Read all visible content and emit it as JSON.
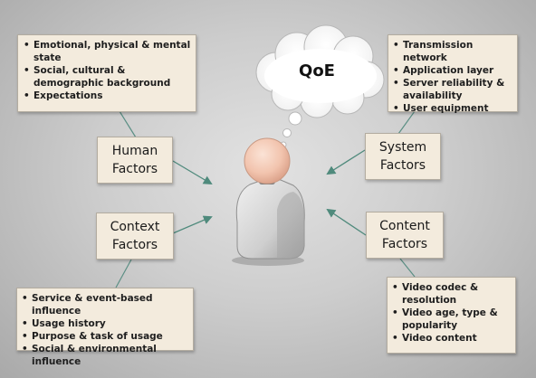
{
  "cloud_label": "QoE",
  "human": {
    "title_line1": "Human",
    "title_line2": "Factors",
    "items": [
      "Emotional, physical & mental state",
      "Social, cultural & demographic background",
      "Expectations"
    ]
  },
  "context": {
    "title_line1": "Context",
    "title_line2": "Factors",
    "items": [
      "Service & event-based influence",
      "Usage history",
      "Purpose & task of usage",
      "Social & environmental influence"
    ]
  },
  "system": {
    "title_line1": "System",
    "title_line2": "Factors",
    "items": [
      "Transmission network",
      "Application layer",
      "Server reliability & availability",
      "User equipment"
    ]
  },
  "content": {
    "title_line1": "Content",
    "title_line2": "Factors",
    "items": [
      "Video codec & resolution",
      "Video age, type & popularity",
      "Video content"
    ]
  },
  "colors": {
    "box_fill": "#f3ebdd",
    "arrow": "#4f8a7c",
    "connector": "#5b8f84",
    "person_head": "#f2c4ae",
    "person_body": "#d3d3d3"
  }
}
